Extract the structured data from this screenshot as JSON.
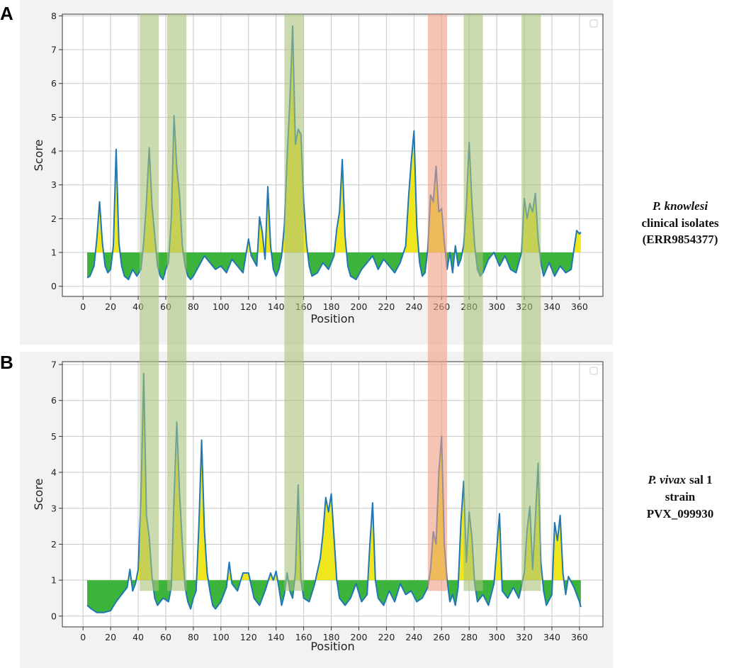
{
  "panels": [
    "A",
    "B"
  ],
  "regions": [
    {
      "start": 41,
      "end": 55,
      "color": "#a9c27a"
    },
    {
      "start": 61,
      "end": 75,
      "color": "#a9c27a"
    },
    {
      "start": 146,
      "end": 160,
      "color": "#a9c27a"
    },
    {
      "start": 250,
      "end": 264,
      "color": "#ee9c84"
    },
    {
      "start": 276,
      "end": 290,
      "color": "#a9c27a"
    },
    {
      "start": 318,
      "end": 332,
      "color": "#a9c27a"
    }
  ],
  "side_labels": [
    {
      "italic": "P. knowlesi",
      "lines": [
        "clinical isolates",
        "(ERR9854377)"
      ]
    },
    {
      "italic": "P. vivax",
      "rest": "sal 1",
      "lines": [
        "strain",
        "PVX_099930"
      ]
    }
  ],
  "chart_data": [
    {
      "type": "line",
      "x_label": "Position",
      "y_label": "Score",
      "threshold": 1,
      "color": "#1f77b4",
      "above_color": "#f0e61e",
      "below_color": "#3cb43c",
      "grid": true,
      "xlim": [
        -15,
        377
      ],
      "xticks": [
        0,
        20,
        40,
        60,
        80,
        100,
        120,
        140,
        160,
        180,
        200,
        220,
        240,
        260,
        280,
        300,
        320,
        340,
        360
      ],
      "ylim": [
        -0.3,
        8.05
      ],
      "yticks": [
        0,
        1,
        2,
        3,
        4,
        5,
        6,
        7,
        8
      ],
      "x": [
        3,
        5,
        8,
        10,
        12,
        14,
        16,
        18,
        20,
        22,
        24,
        26,
        28,
        30,
        33,
        36,
        39,
        42,
        44,
        46,
        48,
        50,
        52,
        54,
        56,
        58,
        60,
        62,
        64,
        66,
        68,
        70,
        72,
        74,
        76,
        78,
        80,
        84,
        88,
        92,
        96,
        100,
        104,
        108,
        112,
        116,
        120,
        122,
        126,
        128,
        130,
        132,
        134,
        136,
        138,
        140,
        142,
        144,
        146,
        148,
        150,
        152,
        154,
        156,
        158,
        160,
        162,
        164,
        166,
        170,
        174,
        178,
        182,
        184,
        186,
        188,
        190,
        192,
        194,
        198,
        202,
        206,
        210,
        214,
        218,
        222,
        226,
        230,
        234,
        236,
        238,
        240,
        242,
        244,
        246,
        248,
        250,
        252,
        254,
        256,
        258,
        260,
        262,
        264,
        266,
        268,
        270,
        272,
        274,
        276,
        278,
        280,
        282,
        284,
        286,
        288,
        290,
        294,
        298,
        302,
        306,
        310,
        314,
        318,
        320,
        322,
        324,
        326,
        328,
        330,
        332,
        334,
        338,
        342,
        346,
        350,
        354,
        356,
        358,
        360,
        361
      ],
      "values": [
        0.25,
        0.3,
        0.6,
        1.4,
        2.5,
        1.3,
        0.6,
        0.4,
        0.5,
        1.2,
        4.05,
        1.3,
        0.6,
        0.3,
        0.2,
        0.5,
        0.3,
        0.5,
        1.3,
        2.5,
        4.1,
        2.4,
        1.5,
        0.6,
        0.3,
        0.2,
        0.5,
        0.7,
        2,
        5.05,
        3.5,
        2.7,
        1.2,
        0.6,
        0.3,
        0.2,
        0.3,
        0.6,
        0.9,
        0.7,
        0.5,
        0.6,
        0.4,
        0.8,
        0.6,
        0.4,
        1.4,
        0.9,
        0.6,
        2.05,
        1.6,
        0.8,
        2.95,
        1.2,
        0.5,
        0.3,
        0.5,
        0.9,
        1.8,
        3.8,
        5.5,
        7.7,
        4.2,
        4.65,
        4.5,
        2.5,
        1.3,
        0.6,
        0.3,
        0.4,
        0.7,
        0.5,
        0.9,
        1.7,
        2.2,
        3.75,
        1.5,
        0.6,
        0.3,
        0.2,
        0.5,
        0.7,
        0.9,
        0.5,
        0.8,
        0.6,
        0.4,
        0.7,
        1.2,
        2.6,
        3.7,
        4.6,
        1.8,
        0.7,
        0.3,
        0.4,
        1.1,
        2.7,
        2.5,
        3.55,
        2.2,
        2.3,
        1.3,
        0.5,
        1,
        0.4,
        1.2,
        0.6,
        0.8,
        1.2,
        2.4,
        4.25,
        2.5,
        1.2,
        0.5,
        0.3,
        0.4,
        0.8,
        1,
        0.6,
        0.9,
        0.5,
        0.4,
        1,
        2.6,
        2.0,
        2.45,
        2.2,
        2.75,
        1.4,
        0.7,
        0.3,
        0.7,
        0.3,
        0.6,
        0.4,
        0.5,
        1.1,
        1.65,
        1.55,
        1.6
      ]
    },
    {
      "type": "line",
      "x_label": "Position",
      "y_label": "Score",
      "threshold": 1,
      "color": "#1f77b4",
      "above_color": "#f0e61e",
      "below_color": "#3cb43c",
      "grid": true,
      "xlim": [
        -15,
        377
      ],
      "xticks": [
        0,
        20,
        40,
        60,
        80,
        100,
        120,
        140,
        160,
        180,
        200,
        220,
        240,
        260,
        280,
        300,
        320,
        340,
        360
      ],
      "ylim": [
        -0.3,
        7.08
      ],
      "yticks": [
        0,
        1,
        2,
        3,
        4,
        5,
        6,
        7
      ],
      "x": [
        3,
        6,
        10,
        15,
        20,
        24,
        28,
        32,
        34,
        36,
        38,
        40,
        42,
        44,
        46,
        48,
        50,
        52,
        54,
        58,
        62,
        64,
        66,
        68,
        70,
        72,
        74,
        76,
        78,
        80,
        82,
        84,
        86,
        88,
        90,
        92,
        94,
        96,
        100,
        104,
        106,
        108,
        112,
        116,
        120,
        124,
        128,
        132,
        136,
        138,
        140,
        142,
        144,
        146,
        148,
        150,
        152,
        154,
        156,
        158,
        160,
        164,
        168,
        172,
        174,
        176,
        178,
        180,
        182,
        184,
        186,
        190,
        194,
        198,
        202,
        206,
        208,
        210,
        212,
        214,
        218,
        222,
        226,
        230,
        234,
        238,
        242,
        246,
        250,
        252,
        254,
        256,
        258,
        260,
        262,
        264,
        266,
        268,
        270,
        272,
        274,
        276,
        278,
        280,
        282,
        284,
        286,
        290,
        294,
        298,
        302,
        304,
        308,
        312,
        316,
        320,
        322,
        324,
        326,
        328,
        330,
        332,
        334,
        336,
        340,
        342,
        344,
        346,
        348,
        350,
        352,
        356,
        360,
        361
      ],
      "values": [
        0.3,
        0.2,
        0.1,
        0.1,
        0.15,
        0.4,
        0.6,
        0.8,
        1.3,
        0.7,
        0.9,
        1.3,
        3.3,
        6.75,
        2.8,
        2.2,
        1.1,
        0.5,
        0.3,
        0.5,
        0.4,
        0.8,
        3.3,
        5.4,
        3.4,
        2.0,
        0.8,
        0.4,
        0.2,
        0.5,
        0.7,
        2.5,
        4.9,
        2.4,
        1.2,
        0.7,
        0.3,
        0.2,
        0.4,
        0.8,
        1.5,
        0.9,
        0.7,
        1.2,
        1.2,
        0.5,
        0.3,
        0.7,
        1.2,
        1.0,
        1.25,
        0.8,
        0.3,
        0.6,
        1.2,
        0.7,
        0.5,
        1.2,
        3.65,
        1.0,
        0.5,
        0.4,
        0.9,
        1.6,
        2.3,
        3.3,
        2.9,
        3.4,
        2.2,
        1.0,
        0.5,
        0.3,
        0.5,
        0.9,
        0.4,
        0.6,
        2.0,
        3.15,
        1.0,
        0.5,
        0.3,
        0.7,
        0.4,
        0.9,
        0.6,
        0.7,
        0.4,
        0.5,
        0.8,
        1.3,
        2.35,
        2.0,
        4.0,
        5.0,
        2.0,
        1.0,
        0.4,
        0.6,
        0.3,
        0.8,
        2.6,
        3.75,
        1.5,
        2.9,
        2.2,
        0.9,
        0.4,
        0.6,
        0.3,
        0.9,
        2.85,
        0.7,
        0.5,
        0.8,
        0.5,
        1.2,
        2.4,
        3.05,
        1.3,
        2.7,
        4.25,
        1.5,
        0.7,
        0.3,
        0.6,
        2.6,
        2.1,
        2.8,
        1.2,
        0.6,
        1.1,
        0.8,
        0.4,
        0.25
      ]
    }
  ]
}
